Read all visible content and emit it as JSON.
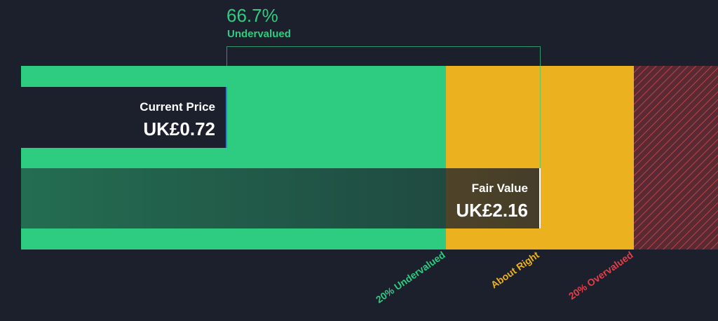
{
  "valuation": {
    "difference": "66.7%",
    "verdict": "Undervalued",
    "current_price": {
      "label": "Current Price",
      "value": "UK£0.72"
    },
    "fair_value": {
      "label": "Fair Value",
      "value": "UK£2.16"
    },
    "zones": [
      "20% Undervalued",
      "About Right",
      "20% Overvalued"
    ]
  }
}
